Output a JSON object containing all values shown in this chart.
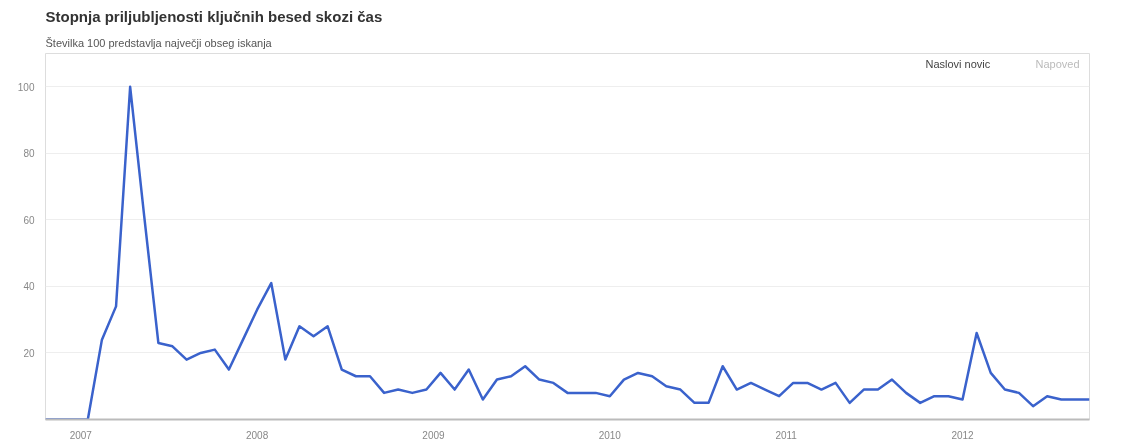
{
  "chart_data": {
    "type": "line",
    "title": "Stopnja priljubljenosti ključnih besed skozi čas",
    "subtitle": "Številka 100 predstavlja največji obseg iskanja",
    "annotations": [
      "Naslovi novic",
      "Napoved"
    ],
    "x": [
      2006.8,
      2006.88,
      2006.96,
      2007.04,
      2007.12,
      2007.2,
      2007.28,
      2007.36,
      2007.44,
      2007.52,
      2007.6,
      2007.68,
      2007.76,
      2007.84,
      2007.92,
      2008.0,
      2008.08,
      2008.16,
      2008.24,
      2008.32,
      2008.4,
      2008.48,
      2008.56,
      2008.64,
      2008.72,
      2008.8,
      2008.88,
      2008.96,
      2009.04,
      2009.12,
      2009.2,
      2009.28,
      2009.36,
      2009.44,
      2009.52,
      2009.6,
      2009.68,
      2009.76,
      2009.84,
      2009.92,
      2010.0,
      2010.08,
      2010.16,
      2010.24,
      2010.32,
      2010.4,
      2010.48,
      2010.56,
      2010.64,
      2010.72,
      2010.8,
      2010.88,
      2010.96,
      2011.04,
      2011.12,
      2011.2,
      2011.28,
      2011.36,
      2011.44,
      2011.52,
      2011.6,
      2011.68,
      2011.76,
      2011.84,
      2011.92,
      2012.0,
      2012.08,
      2012.16,
      2012.24,
      2012.32,
      2012.4,
      2012.48,
      2012.56,
      2012.64,
      2012.72
    ],
    "series": [
      {
        "color": "#3a62cc",
        "values": [
          0,
          0,
          0,
          0,
          24,
          34,
          100,
          61,
          23,
          22,
          18,
          20,
          21,
          15,
          24,
          33,
          41,
          18,
          28,
          25,
          28,
          15,
          13,
          13,
          8,
          9,
          8,
          9,
          14,
          9,
          15,
          6,
          12,
          13,
          16,
          12,
          11,
          8,
          8,
          8,
          7,
          12,
          14,
          13,
          10,
          9,
          5,
          5,
          16,
          9,
          11,
          9,
          7,
          11,
          11,
          9,
          11,
          5,
          9,
          9,
          12,
          8,
          5,
          7,
          7,
          6,
          26,
          14,
          9,
          8,
          4,
          7,
          6,
          6,
          6
        ]
      }
    ],
    "xlim": [
      2006.8,
      2012.72
    ],
    "ylim": [
      0,
      110
    ],
    "xticks": [
      2007,
      2008,
      2009,
      2010,
      2011,
      2012
    ],
    "yticks": [
      {
        "value": 0,
        "label": null
      },
      20,
      40,
      60,
      80,
      100
    ],
    "grid": "y",
    "marker": "none",
    "line_style": "solid"
  }
}
